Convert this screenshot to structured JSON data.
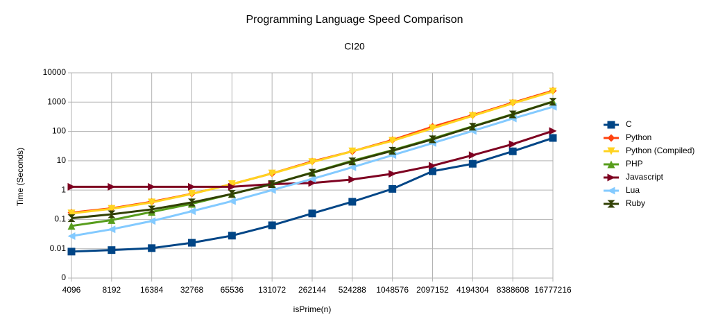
{
  "chart_data": {
    "type": "line",
    "title": "Programming Language Speed Comparison",
    "subtitle": "CI20",
    "x_label": "isPrime(n)",
    "y_label": "Time (Seconds)",
    "categories": [
      "4096",
      "8192",
      "16384",
      "32768",
      "65536",
      "131072",
      "262144",
      "524288",
      "1048576",
      "2097152",
      "4194304",
      "8388608",
      "16777216"
    ],
    "ylog": true,
    "ylim": [
      0.001,
      10000
    ],
    "yticks": [
      {
        "value": 0.001,
        "label": "0"
      },
      0.01,
      0.1,
      1,
      10,
      100,
      1000,
      10000
    ],
    "grid": true,
    "legend": "right",
    "series": [
      {
        "name": "C",
        "color": "#004586",
        "marker": "square",
        "values": [
          0.008,
          0.009,
          0.0105,
          0.016,
          0.028,
          0.063,
          0.16,
          0.4,
          1.1,
          4.4,
          7.9,
          21,
          60
        ]
      },
      {
        "name": "Python",
        "color": "#ff420e",
        "marker": "diamond",
        "values": [
          0.17,
          0.24,
          0.4,
          0.75,
          1.6,
          3.7,
          9.5,
          21,
          51,
          145,
          360,
          960,
          2450
        ]
      },
      {
        "name": "Python (Compiled)",
        "color": "#ffd320",
        "marker": "triangle-down",
        "values": [
          0.16,
          0.23,
          0.38,
          0.74,
          1.6,
          3.7,
          9,
          21,
          48,
          128,
          340,
          910,
          2300
        ]
      },
      {
        "name": "PHP",
        "color": "#579d1c",
        "marker": "triangle-up",
        "values": [
          0.06,
          0.095,
          0.18,
          0.34,
          0.74,
          1.6,
          4,
          10,
          23,
          57,
          150,
          390,
          1050
        ]
      },
      {
        "name": "Javascript",
        "color": "#7e0021",
        "marker": "triangle-right",
        "values": [
          1.3,
          1.3,
          1.3,
          1.3,
          1.3,
          1.6,
          1.75,
          2.3,
          3.6,
          6.8,
          15.5,
          37,
          104
        ]
      },
      {
        "name": "Lua",
        "color": "#83caff",
        "marker": "triangle-left",
        "values": [
          0.027,
          0.046,
          0.088,
          0.19,
          0.42,
          1.0,
          2.4,
          6,
          15.5,
          40,
          104,
          275,
          690
        ]
      },
      {
        "name": "Ruby",
        "color": "#314004",
        "marker": "bowtie",
        "values": [
          0.11,
          0.15,
          0.22,
          0.38,
          0.74,
          1.6,
          3.9,
          9.5,
          22,
          54,
          145,
          380,
          1030
        ]
      }
    ]
  }
}
